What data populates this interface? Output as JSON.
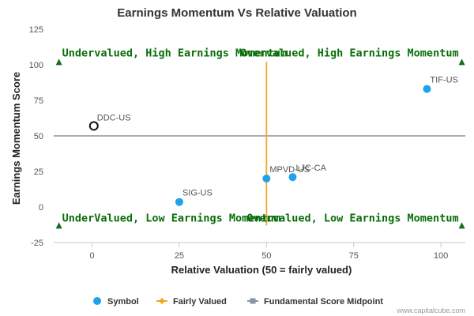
{
  "chart_data": {
    "type": "scatter",
    "title": "Earnings Momentum Vs Relative Valuation",
    "xlabel": "Relative Valuation (50 = fairly valued)",
    "ylabel": "Earnings Momentum Score",
    "xlim": [
      -11,
      107
    ],
    "ylim": [
      -25,
      125
    ],
    "x_ticks": [
      0,
      25,
      50,
      75,
      100
    ],
    "y_ticks": [
      -25,
      0,
      25,
      50,
      75,
      100,
      125
    ],
    "grid": false,
    "series": [
      {
        "name": "Symbol",
        "color": "#1fa2e8",
        "points": [
          {
            "label": "TIF-US",
            "x": 96,
            "y": 83,
            "hollow": false
          },
          {
            "label": "DDC-US",
            "x": 0.5,
            "y": 57,
            "hollow": true
          },
          {
            "label": "MPVD-US",
            "x": 50,
            "y": 20,
            "hollow": false
          },
          {
            "label": "LJC-CA",
            "x": 57.5,
            "y": 21,
            "hollow": false
          },
          {
            "label": "SIG-US",
            "x": 25,
            "y": 3.5,
            "hollow": false
          }
        ]
      }
    ],
    "fairly_valued_line": {
      "x": 50,
      "y_range": [
        -13,
        102
      ],
      "color": "#f5a623"
    },
    "midpoint_line": {
      "y": 50,
      "color": "#8a93a0"
    },
    "quadrant_labels": {
      "top_left": "Undervalued, High Earnings Momentum",
      "top_right": "Overvalued, High Earnings Momentum",
      "bottom_left": "UnderValued, Low Earnings Momentum",
      "bottom_right": "Overvalued, Low Earnings Momentum"
    },
    "quadrant_label_color": "#0a6e0a",
    "markers": [
      {
        "x": -9.5,
        "y": 102,
        "dir": "up"
      },
      {
        "x": 106,
        "y": 102,
        "dir": "up"
      },
      {
        "x": -9.5,
        "y": -13,
        "dir": "up"
      },
      {
        "x": 106,
        "y": -13,
        "dir": "up"
      }
    ],
    "legend": {
      "position": "bottom",
      "items": [
        {
          "label": "Symbol",
          "kind": "dot",
          "color": "#1fa2e8"
        },
        {
          "label": "Fairly Valued",
          "kind": "line-diamond",
          "color": "#f5a623"
        },
        {
          "label": "Fundamental Score Midpoint",
          "kind": "line-square",
          "color": "#8a93a0"
        }
      ]
    }
  },
  "credit": "www.capitalcube.com"
}
